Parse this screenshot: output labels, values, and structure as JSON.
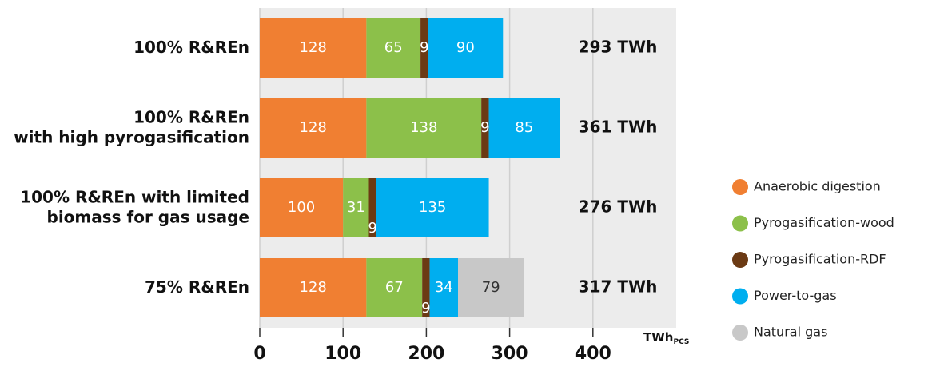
{
  "chart_data": {
    "type": "stacked-barh",
    "categories": [
      [
        "100% R&REn"
      ],
      [
        "100% R&REn",
        "with high pyrogasification"
      ],
      [
        "100% R&REn with limited",
        "biomass for gas usage"
      ],
      [
        "75% R&REn"
      ]
    ],
    "series": [
      {
        "name": "Anaerobic digestion",
        "color": "#f07f32",
        "label_color": "#ffffff",
        "values": [
          128,
          128,
          100,
          128
        ]
      },
      {
        "name": "Pyrogasification-wood",
        "color": "#8cc04a",
        "label_color": "#ffffff",
        "values": [
          65,
          138,
          31,
          67
        ]
      },
      {
        "name": "Pyrogasification-RDF",
        "color": "#6b3a14",
        "label_color": "#ffffff",
        "values": [
          9,
          9,
          9,
          9
        ]
      },
      {
        "name": "Power-to-gas",
        "color": "#00aeef",
        "label_color": "#ffffff",
        "values": [
          90,
          85,
          135,
          34
        ]
      },
      {
        "name": "Natural gas",
        "color": "#c8c8c8",
        "label_color": "#333333",
        "values": [
          null,
          null,
          null,
          79
        ]
      }
    ],
    "totals": [
      293,
      361,
      276,
      317
    ],
    "total_labels": [
      "293 TWh",
      "361 TWh",
      "276 TWh",
      "317 TWh"
    ],
    "xlim": [
      0,
      500
    ],
    "xticks": [
      0,
      100,
      200,
      300,
      400
    ],
    "grid": true,
    "xlabel": "TWh",
    "xlabel_sub": "PCS"
  }
}
